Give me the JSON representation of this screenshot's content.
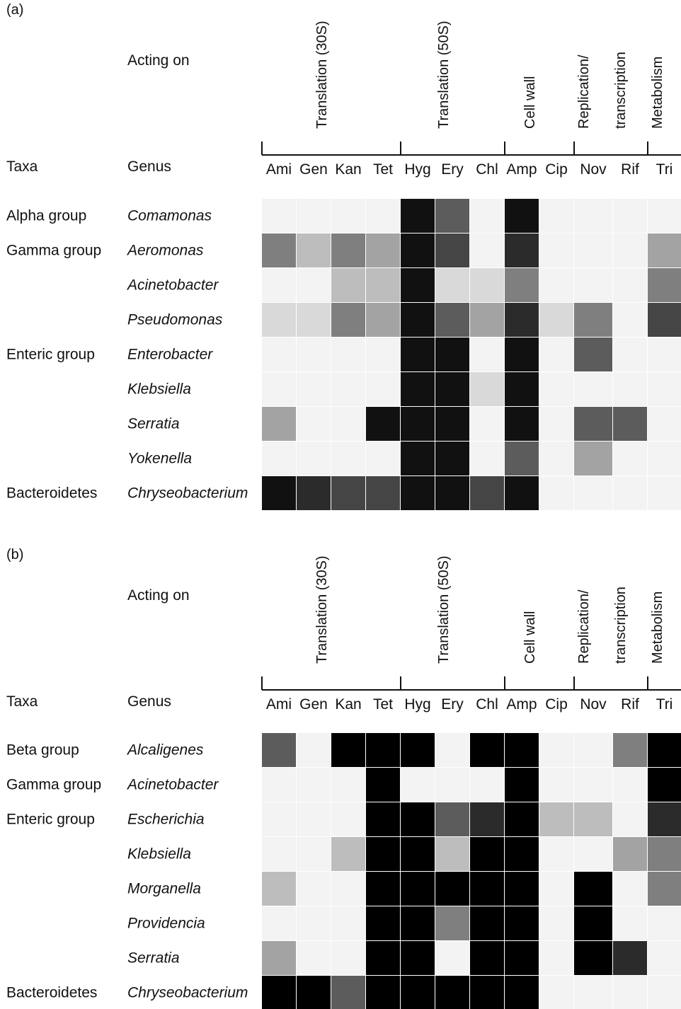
{
  "panels": [
    {
      "label": "(a)",
      "acting_on_label": "Acting on",
      "taxa_header": "Taxa",
      "genus_header": "Genus",
      "categories": [
        "Translation (30S)",
        "Translation (50S)",
        "Cell wall",
        "Replication/",
        "transcription",
        "Metabolism"
      ],
      "antibiotics": [
        "Ami",
        "Gen",
        "Kan",
        "Tet",
        "Hyg",
        "Ery",
        "Chl",
        "Amp",
        "Cip",
        "Nov",
        "Rif",
        "Tri"
      ],
      "rows": [
        {
          "taxa": "Alpha group",
          "genus": "Comamonas"
        },
        {
          "taxa": "Gamma group",
          "genus": "Aeromonas"
        },
        {
          "taxa": "",
          "genus": "Acinetobacter"
        },
        {
          "taxa": "",
          "genus": "Pseudomonas"
        },
        {
          "taxa": "Enteric group",
          "genus": "Enterobacter"
        },
        {
          "taxa": "",
          "genus": "Klebsiella"
        },
        {
          "taxa": "",
          "genus": "Serratia"
        },
        {
          "taxa": "",
          "genus": "Yokenella"
        },
        {
          "taxa": "Bacteroidetes",
          "genus": "Chryseobacterium"
        }
      ]
    },
    {
      "label": "(b)",
      "acting_on_label": "Acting on",
      "taxa_header": "Taxa",
      "genus_header": "Genus",
      "categories": [
        "Translation (30S)",
        "Translation (50S)",
        "Cell wall",
        "Replication/",
        "transcription",
        "Metabolism"
      ],
      "antibiotics": [
        "Ami",
        "Gen",
        "Kan",
        "Tet",
        "Hyg",
        "Ery",
        "Chl",
        "Amp",
        "Cip",
        "Nov",
        "Rif",
        "Tri"
      ],
      "rows": [
        {
          "taxa": "Beta group",
          "genus": "Alcaligenes"
        },
        {
          "taxa": "Gamma group",
          "genus": "Acinetobacter"
        },
        {
          "taxa": "Enteric group",
          "genus": "Escherichia"
        },
        {
          "taxa": "",
          "genus": "Klebsiella"
        },
        {
          "taxa": "",
          "genus": "Morganella"
        },
        {
          "taxa": "",
          "genus": "Providencia"
        },
        {
          "taxa": "",
          "genus": "Serratia"
        },
        {
          "taxa": "Bacteroidetes",
          "genus": "Chryseobacterium"
        }
      ]
    }
  ],
  "chart_data": [
    {
      "type": "heatmap",
      "panel": "(a)",
      "x": [
        "Ami",
        "Gen",
        "Kan",
        "Tet",
        "Hyg",
        "Ery",
        "Chl",
        "Amp",
        "Cip",
        "Nov",
        "Rif",
        "Tri"
      ],
      "y": [
        "Comamonas",
        "Aeromonas",
        "Acinetobacter",
        "Pseudomonas",
        "Enterobacter",
        "Klebsiella",
        "Serratia",
        "Yokenella",
        "Chryseobacterium"
      ],
      "colors": {
        "0": "#f3f3f3",
        "1": "#d9d9d9",
        "2": "#bdbdbd",
        "3": "#a3a3a3",
        "4": "#7f7f7f",
        "5": "#5c5c5c",
        "6": "#454545",
        "7": "#2b2b2b",
        "8": "#111111"
      },
      "values": [
        [
          0,
          0,
          0,
          0,
          8,
          5,
          0,
          8,
          0,
          0,
          0,
          0
        ],
        [
          4,
          2,
          4,
          3,
          8,
          6,
          0,
          7,
          0,
          0,
          0,
          3
        ],
        [
          0,
          0,
          2,
          2,
          8,
          1,
          1,
          4,
          0,
          0,
          0,
          4
        ],
        [
          1,
          1,
          4,
          3,
          8,
          5,
          3,
          7,
          1,
          4,
          0,
          6
        ],
        [
          0,
          0,
          0,
          0,
          8,
          8,
          0,
          8,
          0,
          5,
          0,
          0
        ],
        [
          0,
          0,
          0,
          0,
          8,
          8,
          1,
          8,
          0,
          0,
          0,
          0
        ],
        [
          3,
          0,
          0,
          8,
          8,
          8,
          0,
          8,
          0,
          5,
          5,
          0
        ],
        [
          0,
          0,
          0,
          0,
          8,
          8,
          0,
          5,
          0,
          3,
          0,
          0
        ],
        [
          8,
          7,
          6,
          6,
          8,
          8,
          6,
          8,
          0,
          0,
          0,
          0
        ]
      ]
    },
    {
      "type": "heatmap",
      "panel": "(b)",
      "x": [
        "Ami",
        "Gen",
        "Kan",
        "Tet",
        "Hyg",
        "Ery",
        "Chl",
        "Amp",
        "Cip",
        "Nov",
        "Rif",
        "Tri"
      ],
      "y": [
        "Alcaligenes",
        "Acinetobacter",
        "Escherichia",
        "Klebsiella",
        "Morganella",
        "Providencia",
        "Serratia",
        "Chryseobacterium"
      ],
      "colors": {
        "0": "#f3f3f3",
        "1": "#bdbdbd",
        "2": "#a3a3a3",
        "3": "#7f7f7f",
        "4": "#5c5c5c",
        "5": "#2b2b2b",
        "6": "#000000"
      },
      "values": [
        [
          4,
          0,
          6,
          6,
          6,
          0,
          6,
          6,
          0,
          0,
          3,
          6
        ],
        [
          0,
          0,
          0,
          6,
          0,
          0,
          0,
          6,
          0,
          0,
          0,
          6
        ],
        [
          0,
          0,
          0,
          6,
          6,
          4,
          5,
          6,
          1,
          1,
          0,
          5
        ],
        [
          0,
          0,
          1,
          6,
          6,
          1,
          6,
          6,
          0,
          0,
          2,
          3
        ],
        [
          1,
          0,
          0,
          6,
          6,
          6,
          6,
          6,
          0,
          6,
          0,
          3
        ],
        [
          0,
          0,
          0,
          6,
          6,
          3,
          6,
          6,
          0,
          6,
          0,
          0
        ],
        [
          2,
          0,
          0,
          6,
          6,
          0,
          6,
          6,
          0,
          6,
          5,
          0
        ],
        [
          6,
          6,
          4,
          6,
          6,
          6,
          6,
          6,
          0,
          0,
          0,
          0
        ]
      ]
    }
  ]
}
